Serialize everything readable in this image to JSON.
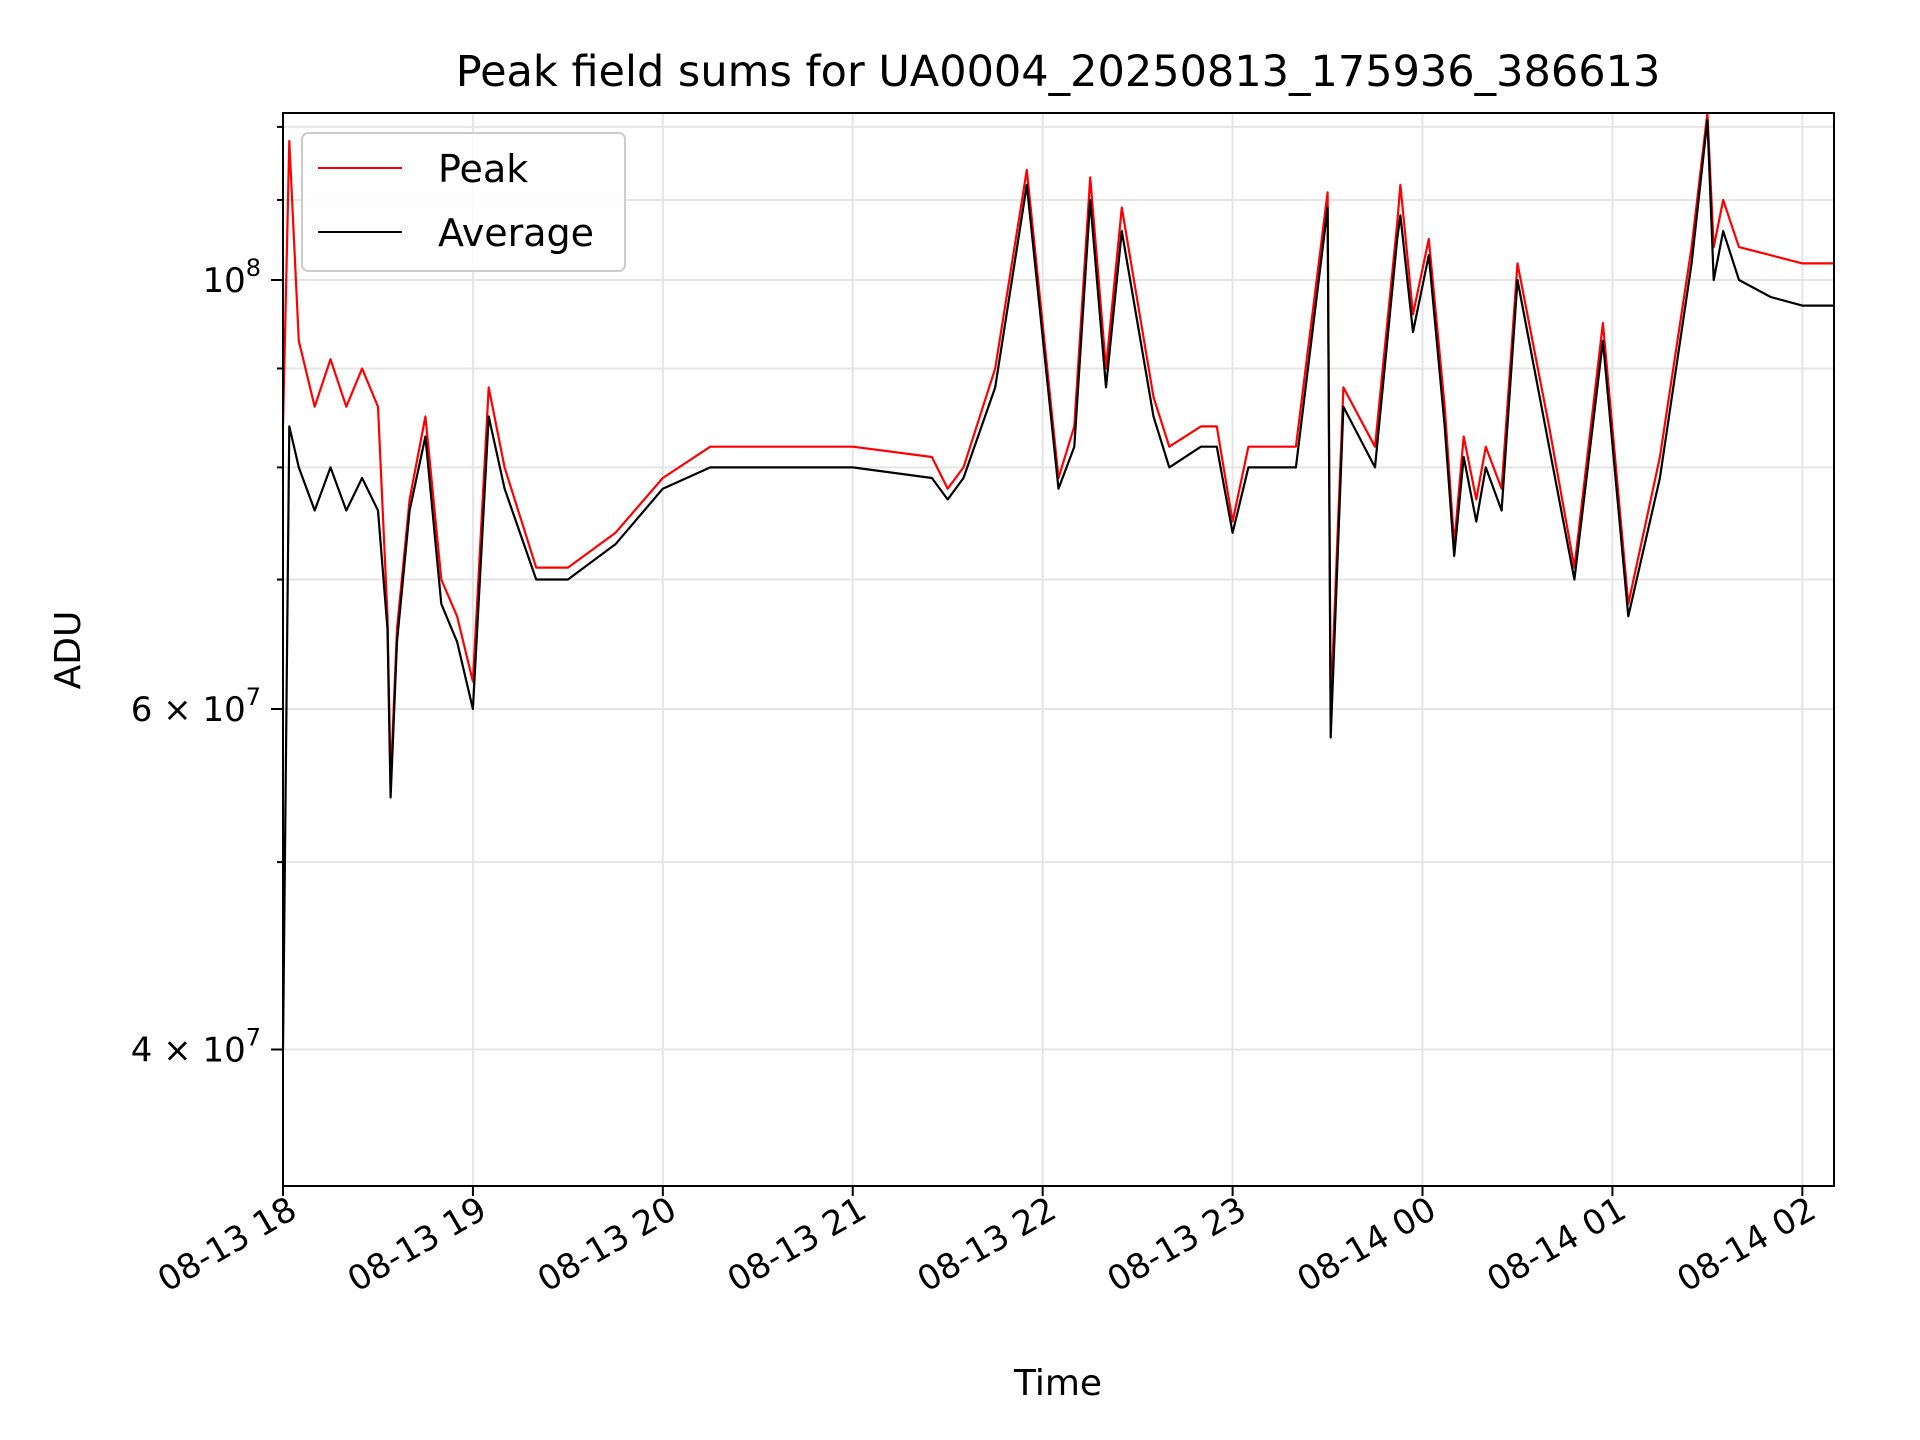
{
  "chart_data": {
    "type": "line",
    "title": "Peak field sums for UA0004_20250813_175936_386613",
    "xlabel": "Time",
    "ylabel": "ADU",
    "yscale": "log",
    "ylim": [
      34000000,
      122000000
    ],
    "xlim": [
      "2025-08-13 18:00",
      "2025-08-14 02:10"
    ],
    "grid": true,
    "legend_position": "top-left",
    "x_ticks": [
      "08-13 18",
      "08-13 19",
      "08-13 20",
      "08-13 21",
      "08-13 22",
      "08-13 23",
      "08-14 00",
      "08-14 01",
      "08-14 02"
    ],
    "y_ticks": [
      {
        "value": 40000000,
        "label": "4 × 10",
        "exp": "7"
      },
      {
        "value": 60000000,
        "label": "6 × 10",
        "exp": "7"
      },
      {
        "value": 100000000,
        "label": "10",
        "exp": "8"
      }
    ],
    "series": [
      {
        "name": "Peak",
        "color": "#ff0000",
        "x": [
          "2025-08-13 18:00",
          "2025-08-13 18:02",
          "2025-08-13 18:05",
          "2025-08-13 18:10",
          "2025-08-13 18:15",
          "2025-08-13 18:20",
          "2025-08-13 18:25",
          "2025-08-13 18:30",
          "2025-08-13 18:33",
          "2025-08-13 18:34",
          "2025-08-13 18:36",
          "2025-08-13 18:40",
          "2025-08-13 18:45",
          "2025-08-13 18:50",
          "2025-08-13 18:55",
          "2025-08-13 19:00",
          "2025-08-13 19:05",
          "2025-08-13 19:10",
          "2025-08-13 19:20",
          "2025-08-13 19:30",
          "2025-08-13 19:45",
          "2025-08-13 20:00",
          "2025-08-13 20:15",
          "2025-08-13 20:30",
          "2025-08-13 21:00",
          "2025-08-13 21:25",
          "2025-08-13 21:30",
          "2025-08-13 21:35",
          "2025-08-13 21:45",
          "2025-08-13 21:55",
          "2025-08-13 22:05",
          "2025-08-13 22:10",
          "2025-08-13 22:15",
          "2025-08-13 22:20",
          "2025-08-13 22:25",
          "2025-08-13 22:35",
          "2025-08-13 22:40",
          "2025-08-13 22:50",
          "2025-08-13 22:55",
          "2025-08-13 23:00",
          "2025-08-13 23:05",
          "2025-08-13 23:10",
          "2025-08-13 23:20",
          "2025-08-13 23:30",
          "2025-08-13 23:31",
          "2025-08-13 23:35",
          "2025-08-13 23:45",
          "2025-08-13 23:52",
          "2025-08-13 23:53",
          "2025-08-13 23:57",
          "2025-08-14 00:02",
          "2025-08-14 00:07",
          "2025-08-14 00:10",
          "2025-08-14 00:13",
          "2025-08-14 00:17",
          "2025-08-14 00:20",
          "2025-08-14 00:25",
          "2025-08-14 00:30",
          "2025-08-14 00:40",
          "2025-08-14 00:48",
          "2025-08-14 00:57",
          "2025-08-14 01:05",
          "2025-08-14 01:15",
          "2025-08-14 01:25",
          "2025-08-14 01:30",
          "2025-08-14 01:32",
          "2025-08-14 01:35",
          "2025-08-14 01:40",
          "2025-08-14 01:50",
          "2025-08-14 02:00",
          "2025-08-14 02:10"
        ],
        "y": [
          84000000,
          118000000,
          93000000,
          86000000,
          91000000,
          86000000,
          90000000,
          86000000,
          67000000,
          55000000,
          66000000,
          77000000,
          85000000,
          70000000,
          67000000,
          62000000,
          88000000,
          80000000,
          71000000,
          71000000,
          74000000,
          79000000,
          82000000,
          82000000,
          82000000,
          81000000,
          78000000,
          80000000,
          90000000,
          114000000,
          79000000,
          84000000,
          113000000,
          90000000,
          109000000,
          87000000,
          82000000,
          84000000,
          84000000,
          75000000,
          82000000,
          82000000,
          82000000,
          111000000,
          60000000,
          88000000,
          82000000,
          107000000,
          112000000,
          96000000,
          105000000,
          86000000,
          73000000,
          83000000,
          77000000,
          82000000,
          78000000,
          102000000,
          84000000,
          71000000,
          95000000,
          68000000,
          81000000,
          104000000,
          122000000,
          104000000,
          110000000,
          104000000,
          103000000,
          102000000,
          102000000
        ]
      },
      {
        "name": "Average",
        "color": "#000000",
        "x": [
          "2025-08-13 18:00",
          "2025-08-13 18:02",
          "2025-08-13 18:05",
          "2025-08-13 18:10",
          "2025-08-13 18:15",
          "2025-08-13 18:20",
          "2025-08-13 18:25",
          "2025-08-13 18:30",
          "2025-08-13 18:33",
          "2025-08-13 18:34",
          "2025-08-13 18:36",
          "2025-08-13 18:40",
          "2025-08-13 18:45",
          "2025-08-13 18:50",
          "2025-08-13 18:55",
          "2025-08-13 19:00",
          "2025-08-13 19:05",
          "2025-08-13 19:10",
          "2025-08-13 19:20",
          "2025-08-13 19:30",
          "2025-08-13 19:45",
          "2025-08-13 20:00",
          "2025-08-13 20:15",
          "2025-08-13 20:30",
          "2025-08-13 21:00",
          "2025-08-13 21:25",
          "2025-08-13 21:30",
          "2025-08-13 21:35",
          "2025-08-13 21:45",
          "2025-08-13 21:55",
          "2025-08-13 22:05",
          "2025-08-13 22:10",
          "2025-08-13 22:15",
          "2025-08-13 22:20",
          "2025-08-13 22:25",
          "2025-08-13 22:35",
          "2025-08-13 22:40",
          "2025-08-13 22:50",
          "2025-08-13 22:55",
          "2025-08-13 23:00",
          "2025-08-13 23:05",
          "2025-08-13 23:10",
          "2025-08-13 23:20",
          "2025-08-13 23:30",
          "2025-08-13 23:31",
          "2025-08-13 23:35",
          "2025-08-13 23:45",
          "2025-08-13 23:52",
          "2025-08-13 23:53",
          "2025-08-13 23:57",
          "2025-08-14 00:02",
          "2025-08-14 00:07",
          "2025-08-14 00:10",
          "2025-08-14 00:13",
          "2025-08-14 00:17",
          "2025-08-14 00:20",
          "2025-08-14 00:25",
          "2025-08-14 00:30",
          "2025-08-14 00:40",
          "2025-08-14 00:48",
          "2025-08-14 00:57",
          "2025-08-14 01:05",
          "2025-08-14 01:15",
          "2025-08-14 01:25",
          "2025-08-14 01:30",
          "2025-08-14 01:32",
          "2025-08-14 01:35",
          "2025-08-14 01:40",
          "2025-08-14 01:50",
          "2025-08-14 02:00",
          "2025-08-14 02:10"
        ],
        "y": [
          40000000,
          84000000,
          80000000,
          76000000,
          80000000,
          76000000,
          79000000,
          76000000,
          66000000,
          54000000,
          65000000,
          76000000,
          83000000,
          68000000,
          65000000,
          60000000,
          85000000,
          78000000,
          70000000,
          70000000,
          73000000,
          78000000,
          80000000,
          80000000,
          80000000,
          79000000,
          77000000,
          79000000,
          88000000,
          112000000,
          78000000,
          82000000,
          110000000,
          88000000,
          106000000,
          85000000,
          80000000,
          82000000,
          82000000,
          74000000,
          80000000,
          80000000,
          80000000,
          109000000,
          58000000,
          86000000,
          80000000,
          105000000,
          108000000,
          94000000,
          103000000,
          84000000,
          72000000,
          81000000,
          75000000,
          80000000,
          76000000,
          100000000,
          82000000,
          70000000,
          93000000,
          67000000,
          79000000,
          102000000,
          121000000,
          100000000,
          106000000,
          100000000,
          98000000,
          97000000,
          97000000
        ]
      }
    ]
  }
}
